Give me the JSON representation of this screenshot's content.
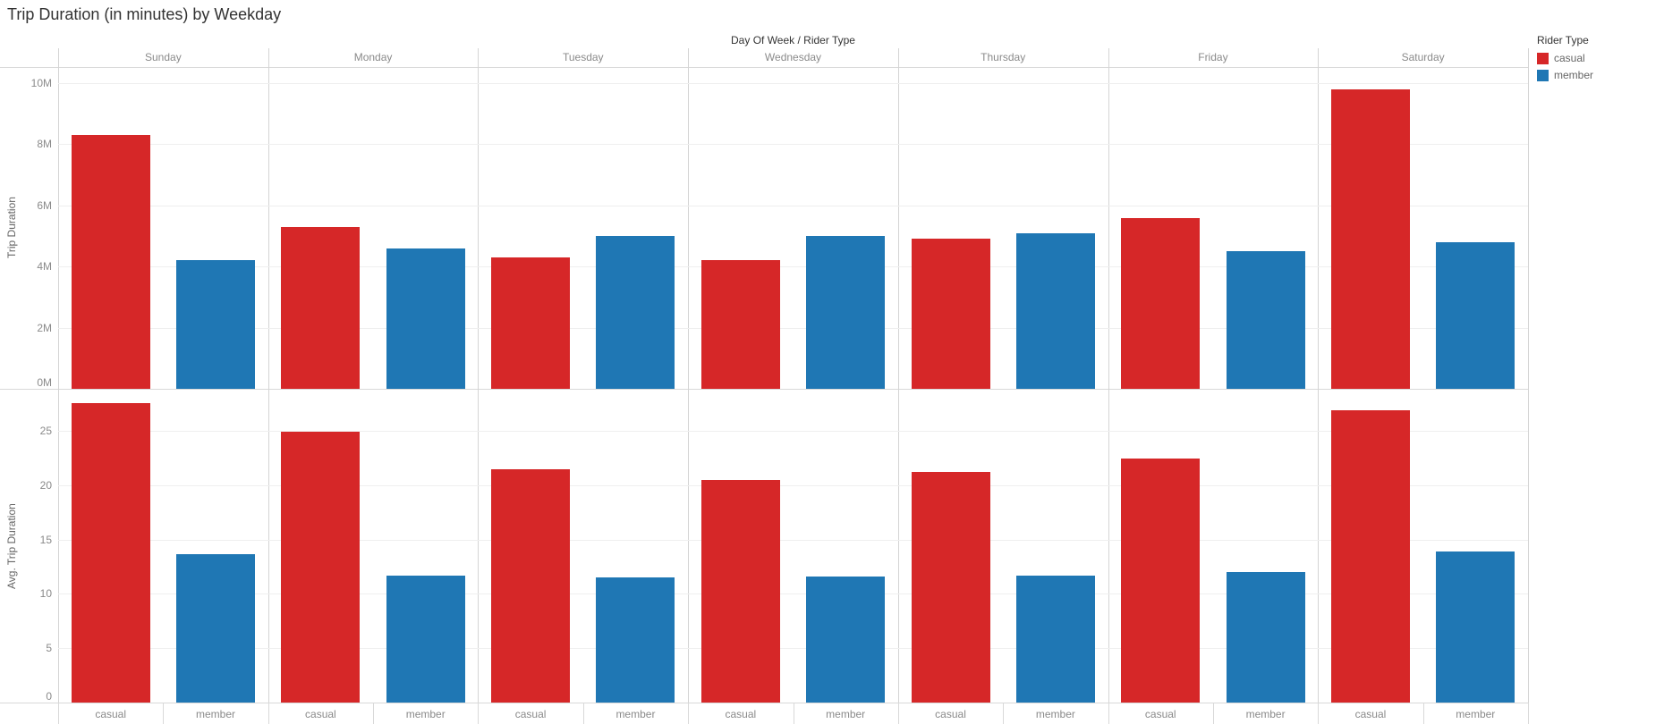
{
  "title": "Trip Duration (in minutes) by Weekday",
  "column_axis_header": "Day Of Week / Rider Type",
  "days": [
    "Sunday",
    "Monday",
    "Tuesday",
    "Wednesday",
    "Thursday",
    "Friday",
    "Saturday"
  ],
  "rider_types": [
    "casual",
    "member"
  ],
  "colors": {
    "casual": "#d62728",
    "member": "#1f77b4"
  },
  "legend": {
    "title": "Rider Type",
    "items": [
      {
        "label": "casual",
        "color": "#d62728"
      },
      {
        "label": "member",
        "color": "#1f77b4"
      }
    ]
  },
  "chart_data": [
    {
      "type": "bar",
      "row": "top",
      "ylabel": "Trip Duration",
      "categories": [
        "Sunday",
        "Monday",
        "Tuesday",
        "Wednesday",
        "Thursday",
        "Friday",
        "Saturday"
      ],
      "series": [
        {
          "name": "casual",
          "color": "#d62728",
          "values": [
            8300000,
            5300000,
            4300000,
            4200000,
            4900000,
            5600000,
            9800000
          ]
        },
        {
          "name": "member",
          "color": "#1f77b4",
          "values": [
            4200000,
            4600000,
            5000000,
            5000000,
            5100000,
            4500000,
            4800000
          ]
        }
      ],
      "ylim": [
        0,
        10530000
      ],
      "yticks": [
        0,
        2000000,
        4000000,
        6000000,
        8000000,
        10000000
      ],
      "ytick_labels": [
        "0M",
        "2M",
        "4M",
        "6M",
        "8M",
        "10M"
      ],
      "grid": true,
      "legend_position": "top-right"
    },
    {
      "type": "bar",
      "row": "bottom",
      "ylabel": "Avg. Trip Duration",
      "categories": [
        "Sunday",
        "Monday",
        "Tuesday",
        "Wednesday",
        "Thursday",
        "Friday",
        "Saturday"
      ],
      "series": [
        {
          "name": "casual",
          "color": "#d62728",
          "values": [
            27.6,
            24.9,
            21.5,
            20.5,
            21.2,
            22.5,
            26.9
          ]
        },
        {
          "name": "member",
          "color": "#1f77b4",
          "values": [
            13.7,
            11.7,
            11.5,
            11.6,
            11.7,
            12.0,
            13.9
          ]
        }
      ],
      "ylim": [
        0,
        28.8
      ],
      "yticks": [
        0,
        5,
        10,
        15,
        20,
        25
      ],
      "ytick_labels": [
        "0",
        "5",
        "10",
        "15",
        "20",
        "25"
      ],
      "grid": true
    }
  ]
}
